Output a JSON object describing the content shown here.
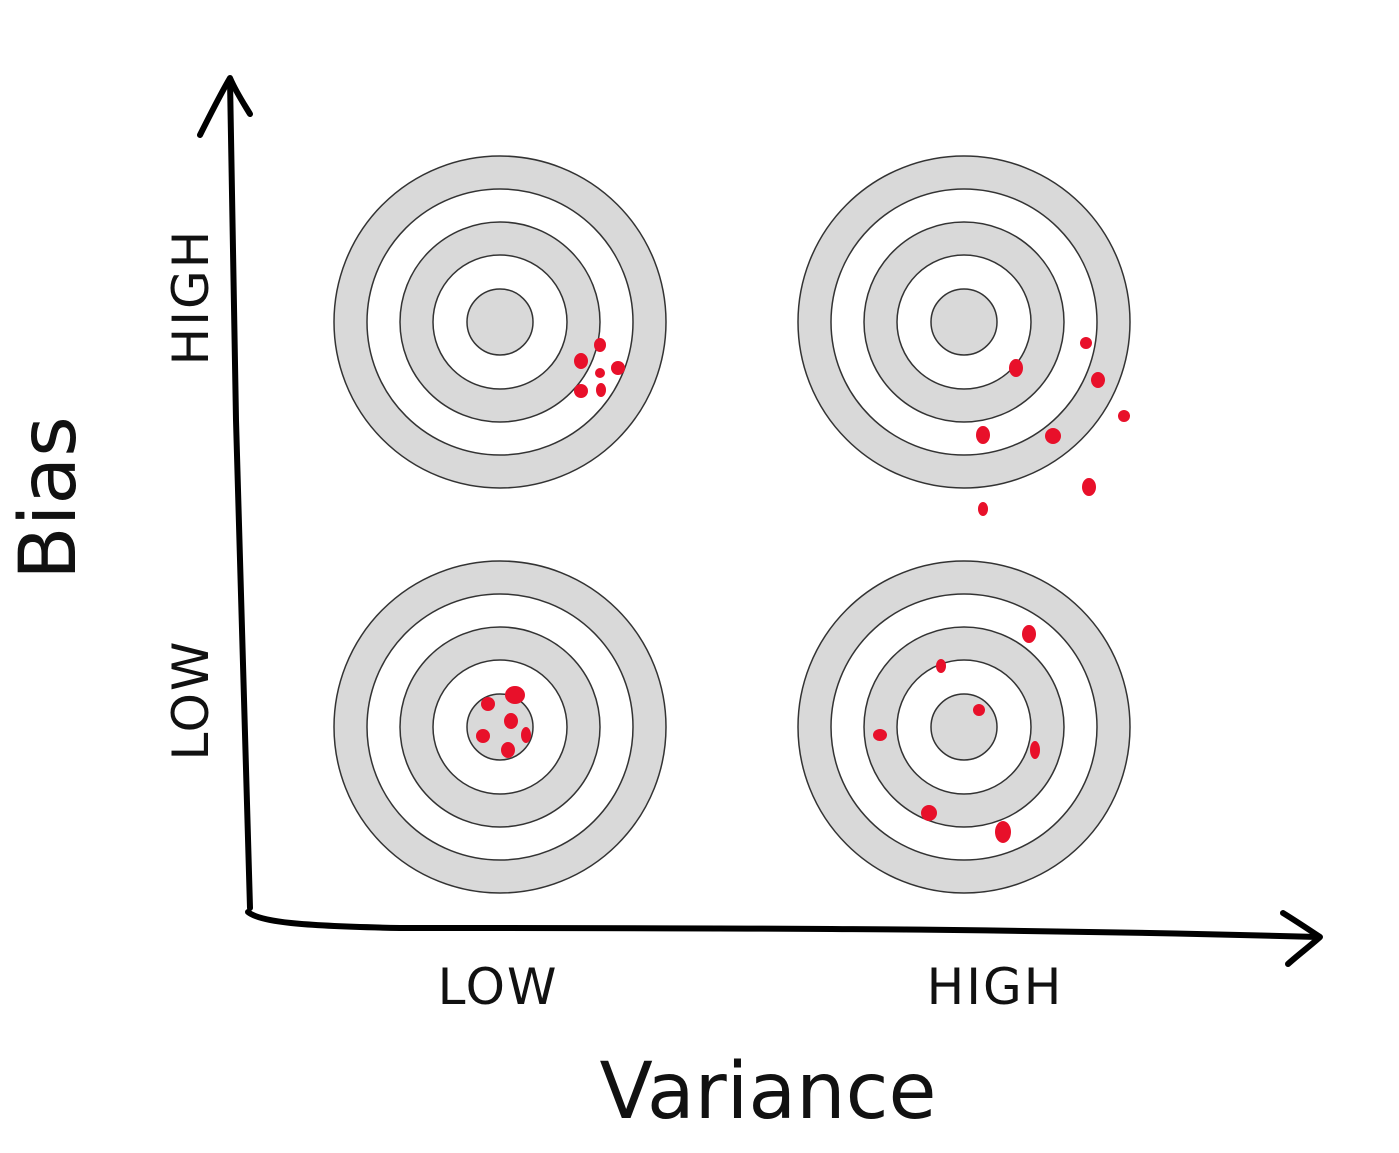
{
  "axes": {
    "x_title": "Variance",
    "y_title": "Bias",
    "x_ticks": [
      "LOW",
      "HIGH"
    ],
    "y_ticks": [
      "LOW",
      "HIGH"
    ]
  },
  "colors": {
    "ring_gray": "#d9d9d9",
    "ring_white": "#ffffff",
    "ring_stroke": "#333333",
    "hit": "#e8102a",
    "axis": "#000000"
  },
  "targets": [
    {
      "bias": "HIGH",
      "variance": "LOW"
    },
    {
      "bias": "HIGH",
      "variance": "HIGH"
    },
    {
      "bias": "LOW",
      "variance": "LOW"
    },
    {
      "bias": "LOW",
      "variance": "HIGH"
    }
  ]
}
